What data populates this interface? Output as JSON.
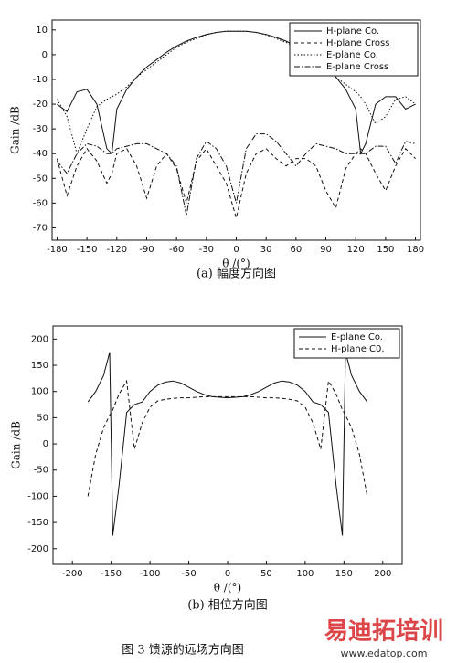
{
  "chart_data": [
    {
      "type": "line",
      "caption": "(a) 幅度方向图",
      "xlabel": "θ /(°)",
      "ylabel": "Gain /dB",
      "x": [
        -180,
        -170,
        -160,
        -150,
        -140,
        -130,
        -125,
        -120,
        -110,
        -100,
        -90,
        -80,
        -70,
        -60,
        -50,
        -40,
        -30,
        -20,
        -10,
        0,
        10,
        20,
        30,
        40,
        50,
        60,
        70,
        80,
        90,
        100,
        110,
        120,
        125,
        130,
        140,
        150,
        160,
        170,
        180
      ],
      "series": [
        {
          "name": "H-plane Co.",
          "color": "#111111",
          "dash": "solid",
          "values": [
            -20,
            -23,
            -15,
            -14,
            -20,
            -38,
            -40,
            -22,
            -14,
            -9,
            -5,
            -2,
            1,
            3.5,
            5.5,
            7,
            8.2,
            9,
            9.5,
            9.5,
            9.5,
            9,
            8.2,
            7,
            5.5,
            3.5,
            1,
            -2,
            -5,
            -9,
            -14,
            -22,
            -40,
            -36,
            -20,
            -17,
            -17,
            -22,
            -20
          ]
        },
        {
          "name": "H-plane Cross",
          "color": "#111111",
          "dash": "dashed",
          "values": [
            -42,
            -57,
            -45,
            -38,
            -43,
            -52,
            -48,
            -40,
            -38,
            -45,
            -58,
            -45,
            -40,
            -46,
            -60,
            -43,
            -38,
            -45,
            -52,
            -66,
            -48,
            -40,
            -38,
            -42,
            -45,
            -42,
            -42,
            -45,
            -55,
            -62,
            -46,
            -40,
            -38,
            -40,
            -48,
            -55,
            -45,
            -38,
            -42
          ]
        },
        {
          "name": "E-plane Co.",
          "color": "#111111",
          "dash": "dotted",
          "values": [
            -18,
            -25,
            -40,
            -30,
            -21,
            -18,
            -17,
            -16,
            -13,
            -9,
            -6,
            -3,
            0,
            3,
            5,
            6.5,
            8,
            9,
            9.5,
            9.5,
            9.5,
            9,
            8,
            6.5,
            5,
            3,
            0,
            -3,
            -6,
            -9,
            -12,
            -15,
            -17,
            -20,
            -28,
            -25,
            -18,
            -17,
            -20
          ]
        },
        {
          "name": "E-plane Cross",
          "color": "#111111",
          "dash": "dashdot",
          "values": [
            -43,
            -48,
            -40,
            -36,
            -37,
            -40,
            -40,
            -38,
            -37,
            -36,
            -36,
            -38,
            -40,
            -45,
            -65,
            -42,
            -35,
            -38,
            -45,
            -60,
            -38,
            -32,
            -32,
            -35,
            -40,
            -45,
            -40,
            -36,
            -37,
            -38,
            -40,
            -40,
            -40,
            -40,
            -37,
            -37,
            -44,
            -35,
            -36
          ]
        }
      ],
      "xlim": [
        -185,
        185
      ],
      "ylim": [
        -75,
        14
      ],
      "xticks": [
        -180,
        -150,
        -120,
        -90,
        -60,
        -30,
        0,
        30,
        60,
        90,
        120,
        150,
        180
      ],
      "yticks": [
        -70,
        -60,
        -50,
        -40,
        -30,
        -20,
        -10,
        0,
        10
      ],
      "legend": "upper right"
    },
    {
      "type": "line",
      "caption": "(b) 相位方向图",
      "xlabel": "θ /(°)",
      "ylabel": "Gain /dB",
      "x": [
        -180,
        -170,
        -160,
        -152,
        -148,
        -140,
        -130,
        -120,
        -110,
        -100,
        -90,
        -80,
        -70,
        -60,
        -50,
        -40,
        -30,
        -20,
        -10,
        0,
        10,
        20,
        30,
        40,
        50,
        60,
        70,
        80,
        90,
        100,
        110,
        120,
        130,
        140,
        148,
        152,
        160,
        170,
        180
      ],
      "series": [
        {
          "name": "E-plane Co.",
          "color": "#111111",
          "dash": "solid",
          "values": [
            80,
            100,
            130,
            175,
            -175,
            -80,
            60,
            75,
            80,
            100,
            112,
            118,
            120,
            116,
            108,
            100,
            94,
            90,
            89,
            88,
            89,
            90,
            94,
            100,
            108,
            116,
            120,
            118,
            112,
            100,
            80,
            75,
            60,
            -80,
            -175,
            175,
            130,
            100,
            80
          ]
        },
        {
          "name": "H-plane C0.",
          "color": "#111111",
          "dash": "dashed",
          "values": [
            -100,
            -20,
            30,
            55,
            65,
            95,
            120,
            -10,
            40,
            70,
            82,
            85,
            87,
            88,
            88,
            89,
            90,
            90,
            90,
            90,
            90,
            90,
            90,
            89,
            88,
            88,
            87,
            85,
            82,
            70,
            40,
            -10,
            120,
            95,
            65,
            55,
            30,
            -20,
            -100
          ]
        }
      ],
      "xlim": [
        -225,
        225
      ],
      "ylim": [
        -230,
        225
      ],
      "xticks": [
        -200,
        -150,
        -100,
        -50,
        0,
        50,
        100,
        150,
        200
      ],
      "yticks": [
        -200,
        -150,
        -100,
        -50,
        0,
        50,
        100,
        150,
        200
      ],
      "legend": "upper right"
    }
  ],
  "figure_caption": "图 3 馈源的远场方向图",
  "watermark": [
    "易迪拓培训",
    "www.edatop.com"
  ]
}
